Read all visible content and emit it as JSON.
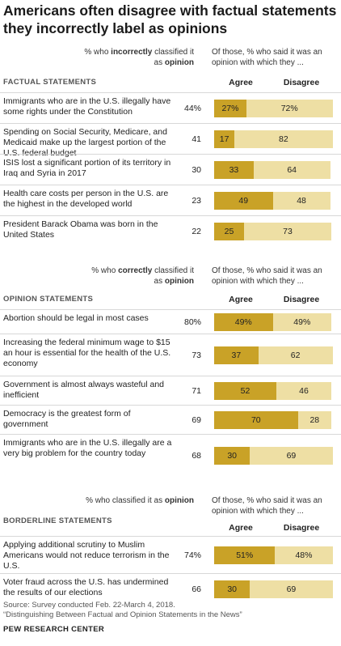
{
  "title": "Americans often disagree with factual statements they incorrectly label as opinions",
  "chart_data": [
    {
      "type": "bar",
      "stacked": true,
      "section_label": "FACTUAL STATEMENTS",
      "left_header_pre": "% who ",
      "left_header_bold": "incorrectly",
      "left_header_mid": " classified it as ",
      "left_header_bold2": "opinion",
      "right_header": "Of those, % who said it was an opinion with which they ...",
      "agree_label": "Agree",
      "disagree_label": "Disagree",
      "categories": [
        "Immigrants who are in the U.S. illegally have some rights under the Constitution",
        "Spending on Social Security, Medicare, and Medicaid make up the largest portion of the U.S. federal budget",
        "ISIS lost a significant portion of its territory in Iraq and Syria in 2017",
        "Health care costs per person in the U.S. are the highest in the developed world",
        "President Barack Obama was born in the United States"
      ],
      "pct_labels": [
        "44%",
        "41",
        "30",
        "23",
        "22"
      ],
      "pct_values": [
        44,
        41,
        30,
        23,
        22
      ],
      "series": [
        {
          "name": "Agree",
          "values": [
            27,
            17,
            33,
            49,
            25
          ],
          "labels": [
            "27%",
            "17",
            "33",
            "49",
            "25"
          ]
        },
        {
          "name": "Disagree",
          "values": [
            72,
            82,
            64,
            48,
            73
          ],
          "labels": [
            "72%",
            "82",
            "64",
            "48",
            "73"
          ]
        }
      ]
    },
    {
      "type": "bar",
      "stacked": true,
      "section_label": "OPINION STATEMENTS",
      "left_header_pre": "% who ",
      "left_header_bold": "correctly",
      "left_header_mid": " classified it as ",
      "left_header_bold2": "opinion",
      "right_header": "Of those, % who said it was an opinion with which they ...",
      "agree_label": "Agree",
      "disagree_label": "Disagree",
      "categories": [
        "Abortion should be legal in most cases",
        "Increasing the federal minimum wage to $15 an hour is essential for the health of the U.S. economy",
        "Government is almost always wasteful and inefficient",
        "Democracy is the greatest form of government",
        "Immigrants who are in the U.S. illegally are a very big problem for the country today"
      ],
      "pct_labels": [
        "80%",
        "73",
        "71",
        "69",
        "68"
      ],
      "pct_values": [
        80,
        73,
        71,
        69,
        68
      ],
      "series": [
        {
          "name": "Agree",
          "values": [
            49,
            37,
            52,
            70,
            30
          ],
          "labels": [
            "49%",
            "37",
            "52",
            "70",
            "30"
          ]
        },
        {
          "name": "Disagree",
          "values": [
            49,
            62,
            46,
            28,
            69
          ],
          "labels": [
            "49%",
            "62",
            "46",
            "28",
            "69"
          ]
        }
      ]
    },
    {
      "type": "bar",
      "stacked": true,
      "section_label": "BORDERLINE STATEMENTS",
      "left_header_pre": "% who classified it as ",
      "left_header_bold": "opinion",
      "left_header_mid": "",
      "left_header_bold2": "",
      "right_header": "Of those, % who said it was an opinion with which they ...",
      "agree_label": "Agree",
      "disagree_label": "Disagree",
      "categories": [
        "Applying additional scrutiny to Muslim Americans would not reduce terrorism in the U.S.",
        "Voter fraud across the U.S. has undermined the results of our elections"
      ],
      "pct_labels": [
        "74%",
        "66"
      ],
      "pct_values": [
        74,
        66
      ],
      "series": [
        {
          "name": "Agree",
          "values": [
            51,
            30
          ],
          "labels": [
            "51%",
            "30"
          ]
        },
        {
          "name": "Disagree",
          "values": [
            48,
            69
          ],
          "labels": [
            "48%",
            "69"
          ]
        }
      ]
    }
  ],
  "footer": {
    "source": "Source: Survey conducted Feb. 22-March 4, 2018.",
    "report": "“Distinguishing Between Factual and Opinion Statements in the News”",
    "org": "PEW RESEARCH CENTER"
  },
  "colors": {
    "agree": "#c9a227",
    "disagree": "#eedfa4"
  }
}
